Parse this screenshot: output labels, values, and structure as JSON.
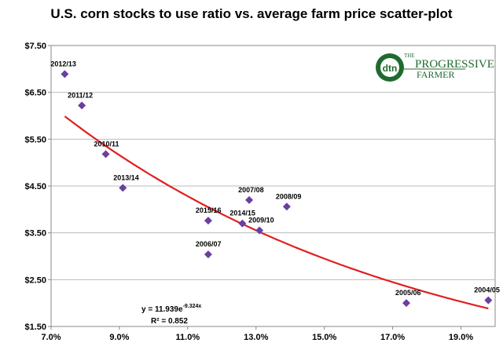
{
  "title": "U.S. corn stocks to use ratio vs. average farm price scatter-plot",
  "logo": {
    "mark": "dtn",
    "name_line1": "PROGRESSIVE",
    "name_prefix": "THE",
    "name_line2": "FARMER",
    "color": "#1f6b2e"
  },
  "chart_data": {
    "type": "scatter",
    "title": "U.S. corn stocks to use ratio vs. average farm price scatter-plot",
    "xlabel": "",
    "ylabel": "",
    "xlim": [
      7.0,
      20.0
    ],
    "ylim": [
      1.5,
      7.5
    ],
    "x_ticks": [
      7.0,
      9.0,
      11.0,
      13.0,
      15.0,
      17.0,
      19.0
    ],
    "x_tick_labels": [
      "7.0%",
      "9.0%",
      "11.0%",
      "13.0%",
      "15.0%",
      "17.0%",
      "19.0%"
    ],
    "y_ticks": [
      1.5,
      2.5,
      3.5,
      4.5,
      5.5,
      6.5,
      7.5
    ],
    "y_tick_labels": [
      "$1.50",
      "$2.50",
      "$3.50",
      "$4.50",
      "$5.50",
      "$6.50",
      "$7.50"
    ],
    "grid": "horizontal",
    "marker_color": "#6a3fa0",
    "points": [
      {
        "label": "2012/13",
        "x": 7.4,
        "y": 6.89
      },
      {
        "label": "2011/12",
        "x": 7.9,
        "y": 6.22
      },
      {
        "label": "2010/11",
        "x": 8.6,
        "y": 5.18
      },
      {
        "label": "2013/14",
        "x": 9.1,
        "y": 4.46
      },
      {
        "label": "2015/16",
        "x": 11.6,
        "y": 3.76
      },
      {
        "label": "2006/07",
        "x": 11.6,
        "y": 3.04
      },
      {
        "label": "2014/15",
        "x": 12.6,
        "y": 3.7
      },
      {
        "label": "2007/08",
        "x": 12.8,
        "y": 4.2
      },
      {
        "label": "2009/10",
        "x": 13.1,
        "y": 3.55
      },
      {
        "label": "2008/09",
        "x": 13.9,
        "y": 4.06
      },
      {
        "label": "2005/06",
        "x": 17.4,
        "y": 2.0
      },
      {
        "label": "2004/05",
        "x": 19.8,
        "y": 2.06
      }
    ],
    "trendline": {
      "type": "exponential",
      "a": 11.939,
      "b": -9.324,
      "x_range": [
        7.4,
        19.8
      ],
      "color": "#e02020",
      "equation_base": "y = 11.939e",
      "equation_exp": "-9.324x",
      "r2_label": "R² = 0.852"
    }
  }
}
